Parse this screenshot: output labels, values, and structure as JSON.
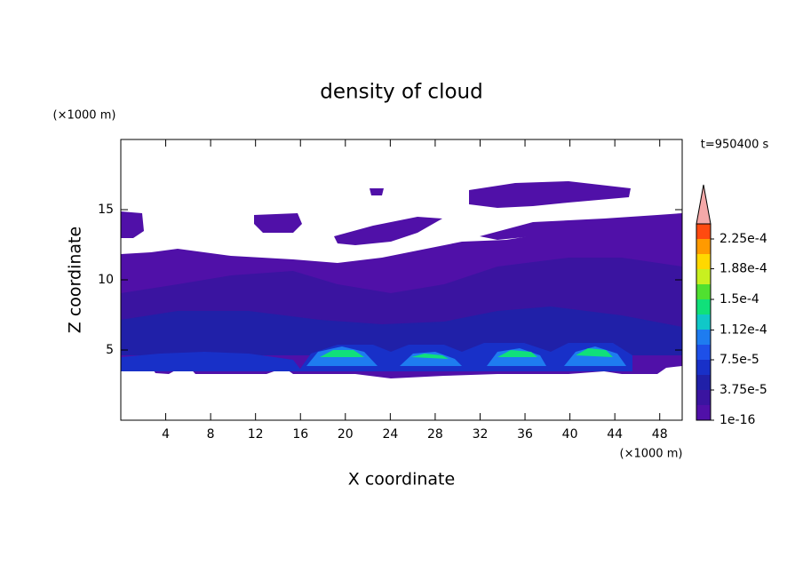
{
  "chart_data": {
    "type": "contour",
    "title": "density of cloud",
    "time_label": "t=950400 s",
    "x_label": "X coordinate",
    "y_label": "Z coordinate",
    "x_unit": "(×1000 m)",
    "y_unit": "(×1000 m)",
    "xlim": [
      0,
      50
    ],
    "ylim": [
      0,
      20
    ],
    "xticks": [
      4,
      8,
      12,
      16,
      20,
      24,
      28,
      32,
      36,
      40,
      44,
      48
    ],
    "yticks": [
      5,
      10,
      15
    ],
    "colorbar": {
      "clim": [
        0,
        0.00024375
      ],
      "colors": [
        "#5010a8",
        "#3a14a0",
        "#2020a8",
        "#1830c8",
        "#1e50e8",
        "#1e7cf0",
        "#10c8c8",
        "#10e07a",
        "#50e030",
        "#c8f020",
        "#ffd800",
        "#ff9a00",
        "#ff4a10"
      ],
      "extend_color": "#f4a8a8",
      "ticks": [
        {
          "value": 1e-16,
          "label": "1e-16"
        },
        {
          "value": 3.75e-05,
          "label": "3.75e-5"
        },
        {
          "value": 7.5e-05,
          "label": "7.5e-5"
        },
        {
          "value": 0.000112,
          "label": "1.12e-4"
        },
        {
          "value": 0.00015,
          "label": "1.5e-4"
        },
        {
          "value": 0.000188,
          "label": "1.88e-4"
        },
        {
          "value": 0.000225,
          "label": "2.25e-4"
        }
      ]
    }
  }
}
